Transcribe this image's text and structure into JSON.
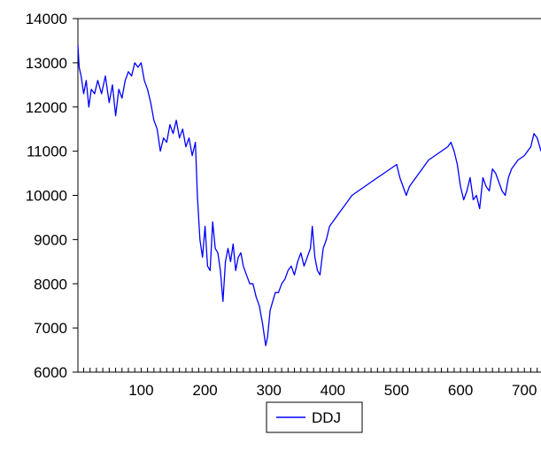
{
  "chart_data": {
    "type": "line",
    "title": "",
    "xlabel": "",
    "ylabel": "",
    "xlim": [
      1,
      726
    ],
    "ylim": [
      6000,
      14000
    ],
    "x_ticks": [
      100,
      200,
      300,
      400,
      500,
      600,
      700
    ],
    "x_tick_labels": [
      "100",
      "200",
      "300",
      "400",
      "500",
      "600",
      "700"
    ],
    "y_ticks": [
      6000,
      7000,
      8000,
      9000,
      10000,
      11000,
      12000,
      13000,
      14000
    ],
    "y_tick_labels": [
      "6000",
      "7000",
      "8000",
      "9000",
      "10000",
      "11000",
      "12000",
      "13000",
      "14000"
    ],
    "grid": false,
    "legend_position": "bottom-center",
    "series": [
      {
        "name": "DDJ",
        "color": "#0000ff",
        "x": [
          1,
          3,
          6,
          10,
          14,
          18,
          22,
          27,
          32,
          38,
          44,
          50,
          55,
          60,
          65,
          70,
          75,
          80,
          85,
          90,
          95,
          100,
          105,
          110,
          115,
          120,
          125,
          130,
          135,
          140,
          145,
          150,
          155,
          160,
          165,
          170,
          175,
          180,
          185,
          188,
          192,
          196,
          200,
          204,
          208,
          212,
          216,
          220,
          224,
          228,
          232,
          236,
          240,
          244,
          248,
          252,
          256,
          260,
          265,
          270,
          275,
          280,
          285,
          290,
          295,
          298,
          302,
          306,
          310,
          315,
          320,
          325,
          330,
          335,
          340,
          345,
          350,
          355,
          360,
          365,
          368,
          372,
          376,
          380,
          385,
          390,
          395,
          400,
          410,
          420,
          430,
          440,
          450,
          460,
          470,
          480,
          490,
          500,
          505,
          510,
          515,
          520,
          530,
          540,
          550,
          560,
          570,
          580,
          585,
          590,
          595,
          600,
          605,
          610,
          615,
          620,
          625,
          630,
          635,
          640,
          645,
          650,
          655,
          660,
          665,
          670,
          675,
          680,
          690,
          700,
          710,
          715,
          720,
          726
        ],
        "values": [
          13400,
          12900,
          12700,
          12300,
          12600,
          12000,
          12400,
          12300,
          12600,
          12300,
          12700,
          12100,
          12500,
          11800,
          12400,
          12200,
          12600,
          12800,
          12700,
          13000,
          12900,
          13000,
          12600,
          12400,
          12100,
          11700,
          11500,
          11000,
          11300,
          11200,
          11600,
          11400,
          11700,
          11300,
          11500,
          11100,
          11300,
          10900,
          11200,
          10000,
          9000,
          8600,
          9300,
          8400,
          8300,
          9400,
          8800,
          8700,
          8300,
          7600,
          8500,
          8800,
          8500,
          8900,
          8300,
          8600,
          8700,
          8400,
          8200,
          8000,
          8000,
          7700,
          7500,
          7100,
          6600,
          6800,
          7400,
          7600,
          7800,
          7800,
          8000,
          8100,
          8300,
          8400,
          8200,
          8500,
          8700,
          8400,
          8600,
          8800,
          9300,
          8600,
          8300,
          8200,
          8800,
          9000,
          9300,
          9400,
          9600,
          9800,
          10000,
          10100,
          10200,
          10300,
          10400,
          10500,
          10600,
          10700,
          10400,
          10200,
          10000,
          10200,
          10400,
          10600,
          10800,
          10900,
          11000,
          11100,
          11200,
          11000,
          10700,
          10200,
          9900,
          10100,
          10400,
          9900,
          10000,
          9700,
          10400,
          10200,
          10100,
          10600,
          10500,
          10300,
          10100,
          10000,
          10400,
          10600,
          10800,
          10900,
          11100,
          11400,
          11300,
          11000
        ]
      }
    ]
  }
}
